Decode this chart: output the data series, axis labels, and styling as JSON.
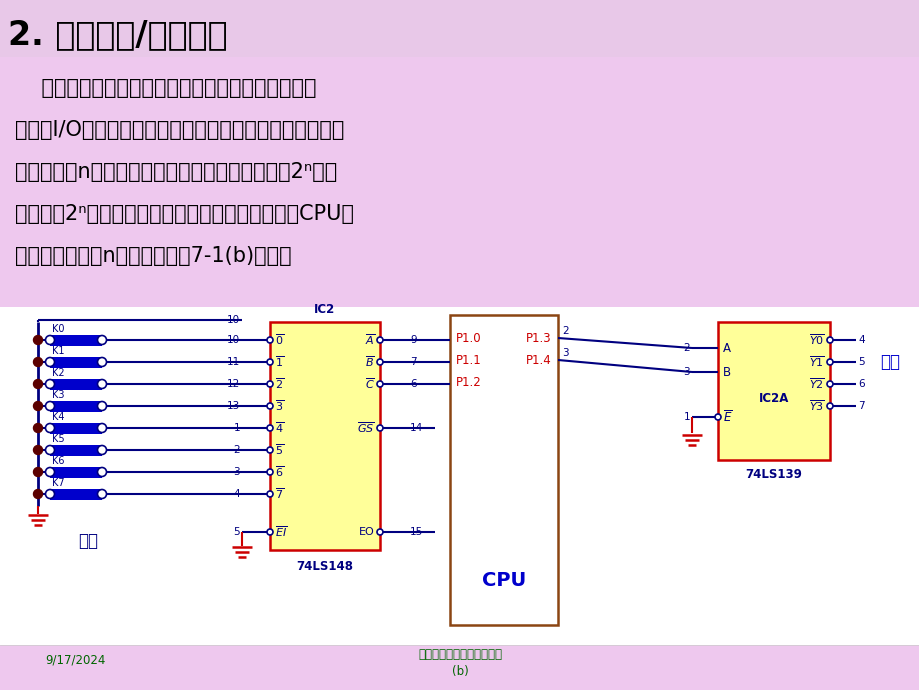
{
  "title": "2. 编码输入/输出方式",
  "title_color": "#000000",
  "title_bg": "#E8C8E8",
  "body_bg": "#EEC8EE",
  "circuit_bg": "#FFFFFF",
  "ic_fill": "#FFFF99",
  "ic_border": "#CC0000",
  "wire_color": "#000080",
  "text_color_dark": "#000080",
  "text_color_red": "#CC0000",
  "switch_fill": "#0000CC",
  "ground_color": "#CC0000",
  "output_text_color": "#0000CC",
  "footer_date": "9/17/2024",
  "footer_title": "数字信号输入输出接口电路",
  "footer_subtitle": "(b)",
  "body_lines": [
    "    在这种方式中，将若干条用途相同（均为输入或输",
    "出）的I/O引脚组合在一起，按二进制编码后输入或输出。",
    "例如，对于n条输出引脚，经过译码后，可以控制2ⁿ个设",
    "备；对于2ⁿ个不同时有效的输入量，经过编码器与CPU连",
    "接时，也只需要n个引脚，如图7-1(b)所示。"
  ]
}
